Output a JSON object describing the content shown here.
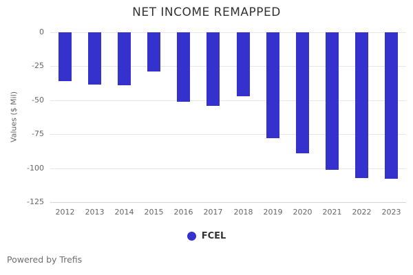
{
  "chart": {
    "footer_credit": "Powered by Trefis"
  },
  "chart_data": {
    "type": "bar",
    "title": "NET INCOME REMAPPED",
    "xlabel": "",
    "ylabel": "Values ($ Mil)",
    "categories": [
      "2012",
      "2013",
      "2014",
      "2015",
      "2016",
      "2017",
      "2018",
      "2019",
      "2020",
      "2021",
      "2022",
      "2023"
    ],
    "series": [
      {
        "name": "FCEL",
        "color": "#3431cd",
        "values": [
          -36,
          -38.5,
          -39,
          -29,
          -51,
          -54,
          -47,
          -78,
          -89,
          -101,
          -107.5,
          -108
        ]
      }
    ],
    "ylim": [
      -125,
      0
    ],
    "yticks": [
      0,
      -25,
      -50,
      -75,
      -100,
      -125
    ],
    "ytick_labels": [
      "0",
      "-25",
      "-50",
      "-75",
      "-100",
      "-125"
    ],
    "grid": true,
    "legend_position": "bottom-center",
    "theme": {
      "bar_color": "#3431cd",
      "grid_color": "#e6e6e6",
      "axis_line_color": "#ccd6eb",
      "tick_label_color": "#666666",
      "title_color": "#333333",
      "legend_text_color": "#333333",
      "credit_color": "#6e6e6e",
      "background": "#ffffff"
    }
  }
}
